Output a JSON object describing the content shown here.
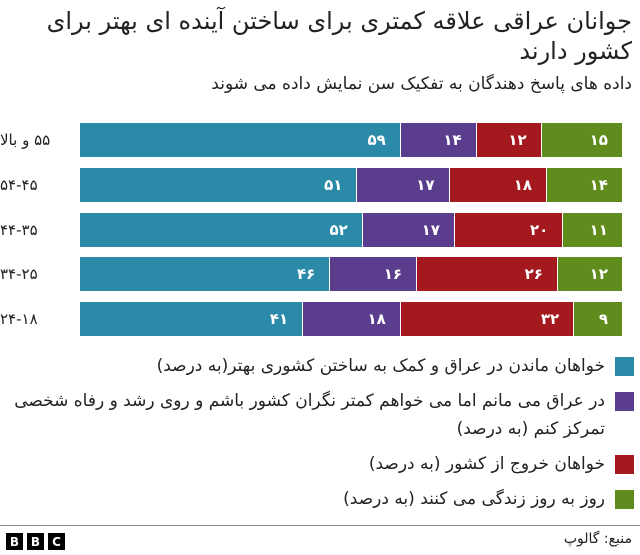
{
  "header": {
    "title": "جوانان عراقی علاقه کمتری برای ساختن آینده ای بهتر برای کشور دارند",
    "subtitle": "داده های پاسخ دهندگان به تفکیک سن نمایش داده می شوند"
  },
  "colors": {
    "stay": "#2a8aa8",
    "stay_less_concerned": "#5a3d8c",
    "leave": "#a3191e",
    "day_to_day": "#5f8c1c"
  },
  "rows": [
    {
      "label": "۵۵ و بالا",
      "values": [
        "۵۹",
        "۱۴",
        "۱۲",
        "۱۵"
      ]
    },
    {
      "label": "۵۴-۴۵",
      "values": [
        "۵۱",
        "۱۷",
        "۱۸",
        "۱۴"
      ]
    },
    {
      "label": "۴۴-۳۵",
      "values": [
        "۵۲",
        "۱۷",
        "۲۰",
        "۱۱"
      ]
    },
    {
      "label": "۳۴-۲۵",
      "values": [
        "۴۶",
        "۱۶",
        "۲۶",
        "۱۲"
      ]
    },
    {
      "label": "۲۴-۱۸",
      "values": [
        "۴۱",
        "۱۸",
        "۳۲",
        "۹"
      ]
    }
  ],
  "legend": [
    {
      "label": "خواهان ماندن در عراق و کمک به ساختن کشوری بهتر(به درصد)",
      "color": "#2a8aa8"
    },
    {
      "label": "در عراق می مانم اما می خواهم کمتر نگران کشور باشم و روی رشد و رفاه شخصی تمرکز کنم (به درصد)",
      "color": "#5a3d8c"
    },
    {
      "label": "خواهان خروج از کشور (به درصد)",
      "color": "#a3191e"
    },
    {
      "label": "روز به روز زندگی می کنند (به درصد)",
      "color": "#5f8c1c"
    }
  ],
  "footer": {
    "logo": [
      "B",
      "B",
      "C"
    ],
    "source": "منبع: گالوپ"
  },
  "chart_data": {
    "type": "bar",
    "orientation": "horizontal",
    "stacked": true,
    "title": "جوانان عراقی علاقه کمتری برای ساختن آینده ای بهتر برای کشور دارند",
    "subtitle": "داده های پاسخ دهندگان به تفکیک سن نمایش داده می شوند",
    "categories": [
      "۵۵ و بالا",
      "۵۴-۴۵",
      "۴۴-۳۵",
      "۳۴-۲۵",
      "۲۴-۱۸"
    ],
    "series": [
      {
        "name": "خواهان ماندن در عراق و کمک به ساختن کشوری بهتر(به درصد)",
        "color": "#2a8aa8",
        "values": [
          59,
          51,
          52,
          46,
          41
        ]
      },
      {
        "name": "در عراق می مانم اما می خواهم کمتر نگران کشور باشم و روی رشد و رفاه شخصی تمرکز کنم (به درصد)",
        "color": "#5a3d8c",
        "values": [
          14,
          17,
          17,
          16,
          18
        ]
      },
      {
        "name": "خواهان خروج از کشور (به درصد)",
        "color": "#a3191e",
        "values": [
          12,
          18,
          20,
          26,
          32
        ]
      },
      {
        "name": "روز به روز زندگی می کنند (به درصد)",
        "color": "#5f8c1c",
        "values": [
          15,
          14,
          11,
          12,
          9
        ]
      }
    ],
    "xlabel": "",
    "ylabel": "",
    "xlim": [
      0,
      100
    ],
    "grid": false,
    "legend_position": "bottom",
    "source": "منبع: گالوپ"
  }
}
